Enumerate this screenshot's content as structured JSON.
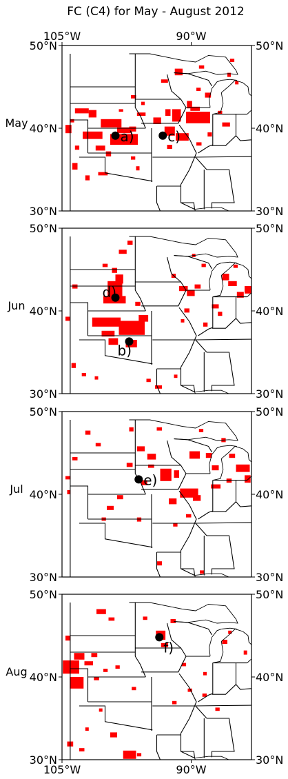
{
  "chart_data": {
    "type": "map",
    "title": "FC (C4) for May - August 2012",
    "projection": "lat-lon",
    "lon_range": [
      -105,
      -83
    ],
    "lat_range": [
      30,
      50
    ],
    "lon_ticks": [
      {
        "value": -105,
        "label": "105°W"
      },
      {
        "value": -90,
        "label": "90°W"
      }
    ],
    "lat_ticks": [
      {
        "value": 50,
        "label": "50°N"
      },
      {
        "value": 40,
        "label": "40°N"
      },
      {
        "value": 30,
        "label": "30°N"
      }
    ],
    "flash_color": "#ff0000",
    "marker_color": "#000000",
    "panels": [
      {
        "month": "May",
        "points": [
          {
            "label": "a)",
            "lon": -98.8,
            "lat": 39.1
          },
          {
            "label": "c)",
            "lon": -93.3,
            "lat": 39.1
          }
        ],
        "patches": [
          [
            -103.5,
            41.8,
            1.6,
            0.6
          ],
          [
            -101.9,
            41.3,
            0.9,
            0.9
          ],
          [
            -100.5,
            40.1,
            2.4,
            1.0
          ],
          [
            -104.6,
            39.4,
            0.7,
            1.0
          ],
          [
            -102.6,
            38.7,
            2.3,
            0.9
          ],
          [
            -99.4,
            38.0,
            3.2,
            1.3
          ],
          [
            -98.6,
            39.4,
            1.7,
            0.7
          ],
          [
            -97.2,
            39.6,
            0.8,
            0.6
          ],
          [
            -101.1,
            37.3,
            1.1,
            0.6
          ],
          [
            -99.9,
            36.6,
            0.6,
            0.6
          ],
          [
            -103.8,
            35.0,
            0.6,
            0.8
          ],
          [
            -102.3,
            33.7,
            0.5,
            0.6
          ],
          [
            -100.8,
            34.3,
            1.1,
            0.4
          ],
          [
            -97.0,
            36.2,
            0.5,
            0.4
          ],
          [
            -96.4,
            34.9,
            0.4,
            0.5
          ],
          [
            -96.3,
            41.5,
            1.0,
            0.4
          ],
          [
            -97.0,
            43.6,
            0.6,
            0.4
          ],
          [
            -93.0,
            41.5,
            0.6,
            0.8
          ],
          [
            -94.4,
            40.5,
            0.9,
            0.8
          ],
          [
            -92.2,
            40.8,
            1.0,
            1.5
          ],
          [
            -90.6,
            40.6,
            2.8,
            1.4
          ],
          [
            -93.1,
            39.1,
            1.2,
            1.1
          ],
          [
            -91.8,
            38.5,
            1.5,
            0.9
          ],
          [
            -92.8,
            37.5,
            0.6,
            0.5
          ],
          [
            -90.5,
            42.4,
            0.6,
            0.9
          ],
          [
            -88.4,
            43.7,
            0.7,
            0.6
          ],
          [
            -91.9,
            46.4,
            0.9,
            0.8
          ],
          [
            -93.5,
            45.5,
            0.8,
            0.4
          ],
          [
            -90.1,
            42.1,
            1.1,
            0.5
          ],
          [
            -89.4,
            44.5,
            0.5,
            0.4
          ],
          [
            -85.8,
            46.2,
            0.4,
            0.5
          ],
          [
            -84.9,
            45.3,
            0.4,
            0.4
          ],
          [
            -86.9,
            41.7,
            0.5,
            0.4
          ],
          [
            -86.4,
            40.2,
            0.9,
            0.5
          ],
          [
            -88.1,
            39.0,
            0.5,
            0.5
          ],
          [
            -89.4,
            37.9,
            0.6,
            0.4
          ],
          [
            -95.8,
            42.8,
            0.4,
            0.4
          ],
          [
            -98.4,
            42.0,
            0.5,
            0.3
          ],
          [
            -103.5,
            37.4,
            0.5,
            0.5
          ],
          [
            -104.1,
            40.7,
            0.5,
            0.4
          ],
          [
            -85.5,
            48.0,
            0.5,
            0.4
          ],
          [
            -89.1,
            47.2,
            0.6,
            0.4
          ]
        ]
      },
      {
        "month": "Jun",
        "points": [
          {
            "label": "d)",
            "lon": -98.8,
            "lat": 41.6
          },
          {
            "label": "b)",
            "lon": -97.2,
            "lat": 36.3
          }
        ],
        "patches": [
          [
            -99.7,
            41.5,
            1.7,
            2.1
          ],
          [
            -100.2,
            40.9,
            2.6,
            0.9
          ],
          [
            -98.8,
            43.3,
            0.9,
            1.1
          ],
          [
            -99.2,
            44.6,
            0.6,
            0.6
          ],
          [
            -101.5,
            38.1,
            3.3,
            1.1
          ],
          [
            -98.4,
            37.1,
            3.0,
            1.7
          ],
          [
            -100.4,
            36.9,
            1.5,
            0.7
          ],
          [
            -99.6,
            35.9,
            1.1,
            0.8
          ],
          [
            -97.6,
            35.6,
            1.3,
            0.9
          ],
          [
            -96.1,
            38.7,
            1.1,
            0.8
          ],
          [
            -96.5,
            40.6,
            0.6,
            0.5
          ],
          [
            -98.4,
            46.9,
            0.9,
            0.5
          ],
          [
            -97.4,
            48.0,
            0.6,
            0.5
          ],
          [
            -100.3,
            45.3,
            0.6,
            0.4
          ],
          [
            -103.8,
            42.7,
            0.6,
            0.5
          ],
          [
            -104.6,
            38.8,
            0.5,
            0.5
          ],
          [
            -103.9,
            33.1,
            0.5,
            0.6
          ],
          [
            -102.7,
            32.1,
            0.5,
            0.4
          ],
          [
            -101.2,
            31.7,
            0.4,
            0.4
          ],
          [
            -91.4,
            42.4,
            1.0,
            0.6
          ],
          [
            -90.5,
            41.8,
            0.9,
            0.7
          ],
          [
            -89.6,
            42.7,
            0.7,
            0.5
          ],
          [
            -86.4,
            43.7,
            0.8,
            0.8
          ],
          [
            -85.7,
            43.0,
            1.0,
            0.6
          ],
          [
            -84.7,
            41.6,
            0.8,
            0.7
          ],
          [
            -83.8,
            42.1,
            0.8,
            0.9
          ],
          [
            -87.6,
            40.3,
            0.8,
            0.5
          ],
          [
            -86.9,
            39.4,
            0.5,
            0.5
          ],
          [
            -88.6,
            38.1,
            0.5,
            0.5
          ],
          [
            -90.8,
            39.8,
            0.6,
            0.5
          ],
          [
            -91.2,
            38.6,
            0.4,
            0.4
          ],
          [
            -92.3,
            44.0,
            0.5,
            0.5
          ],
          [
            -88.8,
            45.3,
            0.5,
            0.4
          ],
          [
            -89.9,
            46.5,
            0.4,
            0.4
          ],
          [
            -85.1,
            45.2,
            0.5,
            0.4
          ],
          [
            -94.2,
            30.6,
            0.8,
            0.4
          ],
          [
            -95.2,
            31.4,
            0.5,
            0.4
          ],
          [
            -92.0,
            31.9,
            0.4,
            0.4
          ]
        ]
      },
      {
        "month": "Jul",
        "points": [
          {
            "label": "e)",
            "lon": -96.1,
            "lat": 41.8
          }
        ],
        "patches": [
          [
            -102.3,
            47.2,
            0.6,
            0.5
          ],
          [
            -101.1,
            45.8,
            0.6,
            0.4
          ],
          [
            -97.2,
            47.6,
            0.5,
            0.5
          ],
          [
            -94.0,
            47.7,
            0.6,
            0.4
          ],
          [
            -96.3,
            45.2,
            0.9,
            0.6
          ],
          [
            -95.1,
            44.2,
            1.0,
            0.7
          ],
          [
            -97.5,
            43.3,
            0.7,
            0.5
          ],
          [
            -95.0,
            43.2,
            0.7,
            0.4
          ],
          [
            -93.6,
            41.6,
            1.3,
            1.5
          ],
          [
            -95.8,
            41.1,
            0.7,
            0.6
          ],
          [
            -92.0,
            42.0,
            0.6,
            0.9
          ],
          [
            -90.2,
            44.3,
            1.2,
            0.9
          ],
          [
            -88.3,
            44.4,
            0.7,
            0.6
          ],
          [
            -87.6,
            42.9,
            0.8,
            0.6
          ],
          [
            -85.6,
            44.4,
            0.7,
            0.5
          ],
          [
            -84.8,
            42.7,
            1.6,
            0.9
          ],
          [
            -83.8,
            41.4,
            0.7,
            0.9
          ],
          [
            -85.9,
            41.4,
            0.6,
            0.5
          ],
          [
            -87.7,
            40.7,
            1.1,
            0.5
          ],
          [
            -91.3,
            39.6,
            2.1,
            1.1
          ],
          [
            -92.6,
            38.8,
            0.9,
            0.7
          ],
          [
            -89.8,
            39.2,
            0.9,
            0.7
          ],
          [
            -98.6,
            39.4,
            0.7,
            0.5
          ],
          [
            -99.8,
            38.1,
            0.8,
            0.5
          ],
          [
            -100.4,
            36.8,
            0.5,
            0.4
          ],
          [
            -104.6,
            41.8,
            0.6,
            0.4
          ],
          [
            -103.8,
            44.1,
            0.6,
            0.4
          ],
          [
            -104.4,
            40.0,
            0.4,
            0.5
          ],
          [
            -96.3,
            36.7,
            0.5,
            0.5
          ],
          [
            -92.1,
            36.1,
            0.5,
            0.4
          ],
          [
            -90.6,
            37.2,
            0.6,
            0.4
          ],
          [
            -94.0,
            31.4,
            0.6,
            0.5
          ],
          [
            -89.0,
            30.4,
            0.5,
            0.4
          ],
          [
            -86.5,
            46.3,
            0.5,
            0.5
          ],
          [
            -89.1,
            47.5,
            0.5,
            0.4
          ]
        ]
      },
      {
        "month": "Aug",
        "points": [
          {
            "label": "f)",
            "lon": -93.7,
            "lat": 44.8
          }
        ],
        "patches": [
          [
            -104.9,
            40.4,
            1.9,
            1.6
          ],
          [
            -104.1,
            38.6,
            1.6,
            1.4
          ],
          [
            -103.6,
            42.1,
            1.2,
            0.8
          ],
          [
            -104.6,
            44.4,
            0.6,
            0.6
          ],
          [
            -101.0,
            47.6,
            1.1,
            0.6
          ],
          [
            -99.6,
            46.8,
            0.7,
            0.4
          ],
          [
            -101.6,
            42.4,
            0.7,
            0.5
          ],
          [
            -102.4,
            41.4,
            1.0,
            0.5
          ],
          [
            -100.2,
            40.6,
            0.5,
            0.4
          ],
          [
            -101.3,
            39.6,
            0.6,
            0.4
          ],
          [
            -98.8,
            41.0,
            0.5,
            0.4
          ],
          [
            -94.1,
            44.5,
            1.1,
            1.1
          ],
          [
            -93.5,
            43.6,
            0.8,
            0.5
          ],
          [
            -92.4,
            46.5,
            0.6,
            0.5
          ],
          [
            -95.6,
            46.9,
            0.5,
            0.4
          ],
          [
            -86.4,
            44.0,
            0.6,
            0.5
          ],
          [
            -85.7,
            45.2,
            0.4,
            0.4
          ],
          [
            -83.9,
            42.7,
            0.4,
            0.5
          ],
          [
            -88.7,
            37.6,
            0.5,
            0.4
          ],
          [
            -90.4,
            38.2,
            0.5,
            0.4
          ],
          [
            -92.2,
            36.7,
            0.5,
            0.4
          ],
          [
            -87.2,
            35.9,
            0.5,
            0.4
          ],
          [
            -99.4,
            32.7,
            0.8,
            0.6
          ],
          [
            -104.4,
            31.6,
            0.7,
            0.6
          ],
          [
            -103.0,
            31.0,
            0.6,
            0.4
          ],
          [
            -97.9,
            30.1,
            1.5,
            1.0
          ],
          [
            -96.3,
            30.4,
            0.5,
            0.4
          ],
          [
            -102.3,
            33.5,
            0.4,
            0.4
          ],
          [
            -100.7,
            35.8,
            0.4,
            0.4
          ],
          [
            -96.9,
            38.4,
            0.5,
            0.4
          ],
          [
            -91.1,
            41.3,
            0.5,
            0.4
          ],
          [
            -88.6,
            40.2,
            0.4,
            0.4
          ]
        ]
      }
    ]
  }
}
